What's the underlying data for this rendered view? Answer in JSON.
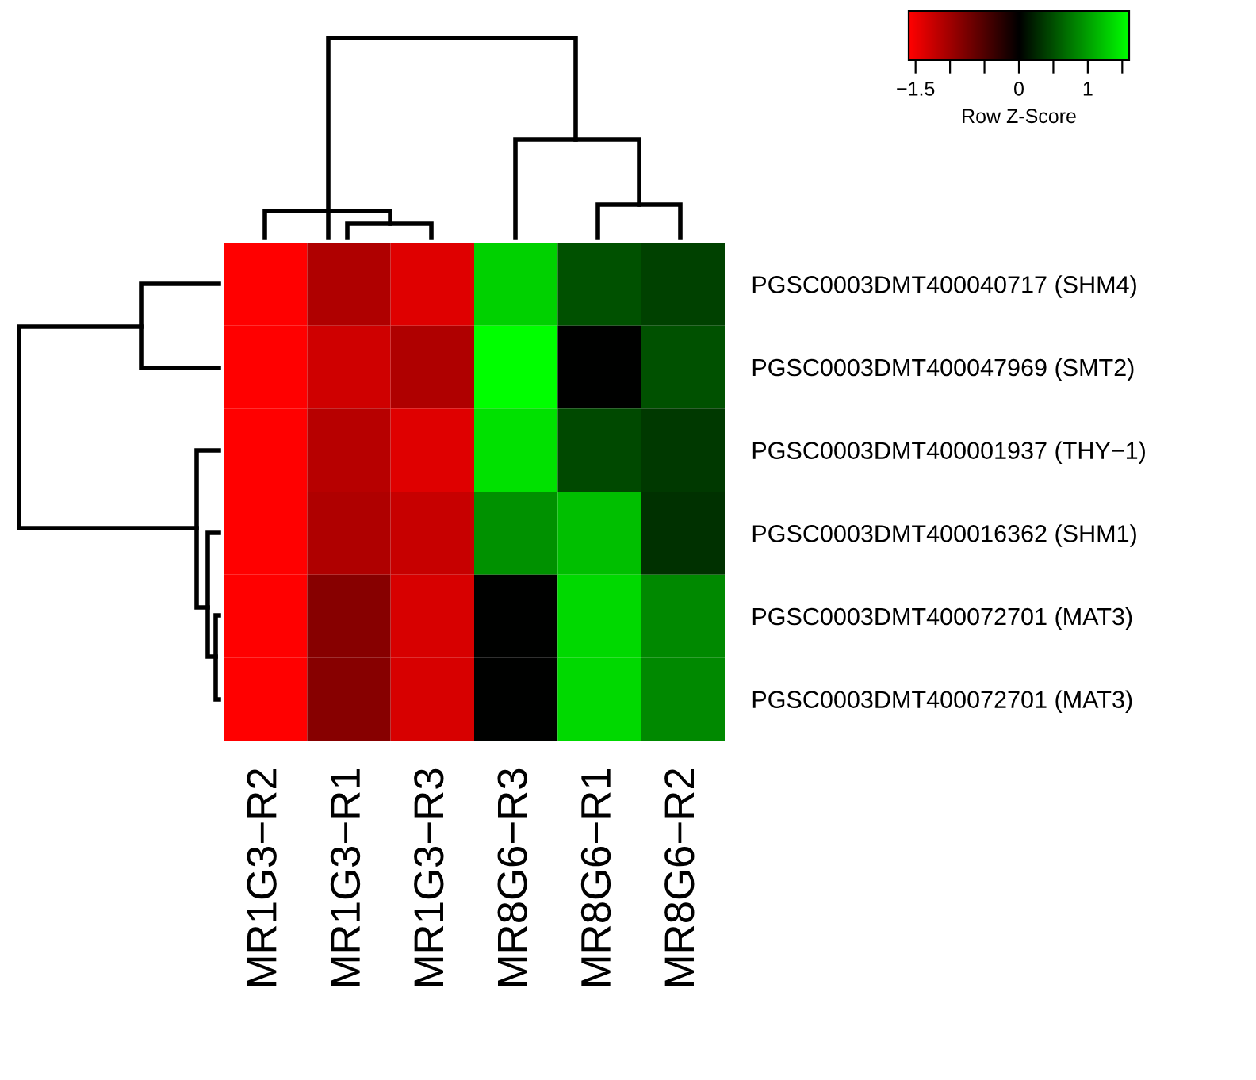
{
  "chart_data": {
    "type": "heatmap",
    "categories": [
      "MR1G3−R2",
      "MR1G3−R1",
      "MR1G3−R3",
      "MR8G6−R3",
      "MR8G6−R1",
      "MR8G6−R2"
    ],
    "y_categories": [
      "PGSC0003DMT400040717 (SHM4)",
      "PGSC0003DMT400047969 (SMT2)",
      "PGSC0003DMT400001937 (THY−1)",
      "PGSC0003DMT400016362 (SHM1)",
      "PGSC0003DMT400072701 (MAT3)",
      "PGSC0003DMT400072701 (MAT3)"
    ],
    "cells": [
      [
        -1.6,
        -1.1,
        -1.4,
        1.3,
        0.5,
        0.4
      ],
      [
        -1.6,
        -1.3,
        -1.1,
        1.6,
        0.0,
        0.5
      ],
      [
        -1.6,
        -1.15,
        -1.4,
        1.4,
        0.45,
        0.35
      ],
      [
        -1.6,
        -1.1,
        -1.25,
        0.9,
        1.2,
        0.3
      ],
      [
        -1.6,
        -0.85,
        -1.35,
        0.0,
        1.35,
        0.85
      ],
      [
        -1.6,
        -0.85,
        -1.35,
        0.0,
        1.35,
        0.85
      ]
    ],
    "clim": [
      -1.6,
      1.6
    ],
    "cticks": [
      {
        "value": -1.5,
        "label": "−1.5"
      },
      {
        "value": -1,
        "label": null
      },
      {
        "value": -0.5,
        "label": null
      },
      0,
      {
        "value": 0.5,
        "label": null
      },
      1,
      {
        "value": 1.5,
        "label": null
      }
    ],
    "clabel": "Row Z-Score"
  }
}
